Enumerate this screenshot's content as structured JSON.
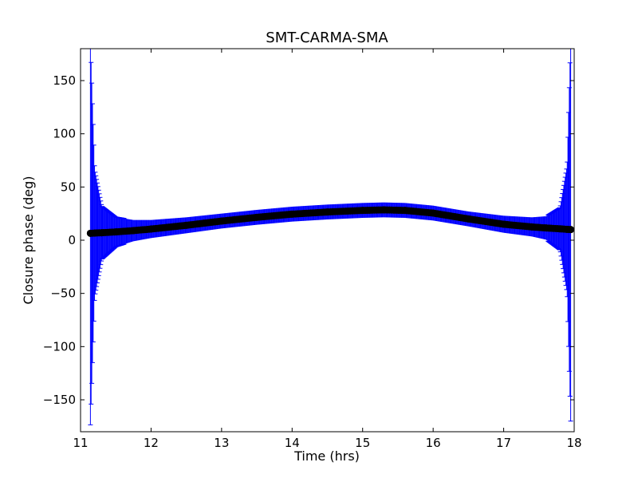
{
  "chart_data": {
    "type": "scatter",
    "title": "SMT-CARMA-SMA",
    "xlabel": "Time (hrs)",
    "ylabel": "Closure phase (deg)",
    "xlim": [
      11,
      18
    ],
    "ylim": [
      -180,
      180
    ],
    "x_ticks": [
      11,
      12,
      13,
      14,
      15,
      16,
      17,
      18
    ],
    "x_tick_labels": [
      "11",
      "12",
      "13",
      "14",
      "15",
      "16",
      "17",
      "18"
    ],
    "y_ticks": [
      -150,
      -100,
      -50,
      0,
      50,
      100,
      150
    ],
    "y_tick_labels": [
      "−150",
      "−100",
      "−50",
      "0",
      "50",
      "100",
      "150"
    ],
    "grid": false,
    "legend": false,
    "colors": {
      "points": "#000000",
      "error_bars": "#0000ff",
      "axes": "#000000"
    },
    "series": [
      {
        "marker": "circle",
        "error_bars": true,
        "points": [
          {
            "x": 11.14,
            "y": 6.5,
            "err": 180
          },
          {
            "x": 11.2,
            "y": 6.7,
            "err": 60
          },
          {
            "x": 11.3,
            "y": 7.0,
            "err": 25
          },
          {
            "x": 11.5,
            "y": 7.8,
            "err": 14
          },
          {
            "x": 11.75,
            "y": 9.0,
            "err": 10
          },
          {
            "x": 12.0,
            "y": 10.5,
            "err": 8.5
          },
          {
            "x": 12.5,
            "y": 14.0,
            "err": 7.5
          },
          {
            "x": 13.0,
            "y": 18.0,
            "err": 7
          },
          {
            "x": 13.5,
            "y": 21.5,
            "err": 7
          },
          {
            "x": 14.0,
            "y": 24.5,
            "err": 7
          },
          {
            "x": 14.5,
            "y": 26.5,
            "err": 7
          },
          {
            "x": 15.0,
            "y": 28.0,
            "err": 7
          },
          {
            "x": 15.3,
            "y": 28.5,
            "err": 7
          },
          {
            "x": 15.6,
            "y": 28.0,
            "err": 7
          },
          {
            "x": 16.0,
            "y": 25.5,
            "err": 7
          },
          {
            "x": 16.5,
            "y": 20.0,
            "err": 7
          },
          {
            "x": 17.0,
            "y": 15.0,
            "err": 8
          },
          {
            "x": 17.4,
            "y": 12.5,
            "err": 9
          },
          {
            "x": 17.6,
            "y": 11.5,
            "err": 11
          },
          {
            "x": 17.8,
            "y": 10.7,
            "err": 20
          },
          {
            "x": 17.9,
            "y": 10.2,
            "err": 60
          },
          {
            "x": 17.95,
            "y": 10.0,
            "err": 180
          }
        ]
      }
    ]
  }
}
